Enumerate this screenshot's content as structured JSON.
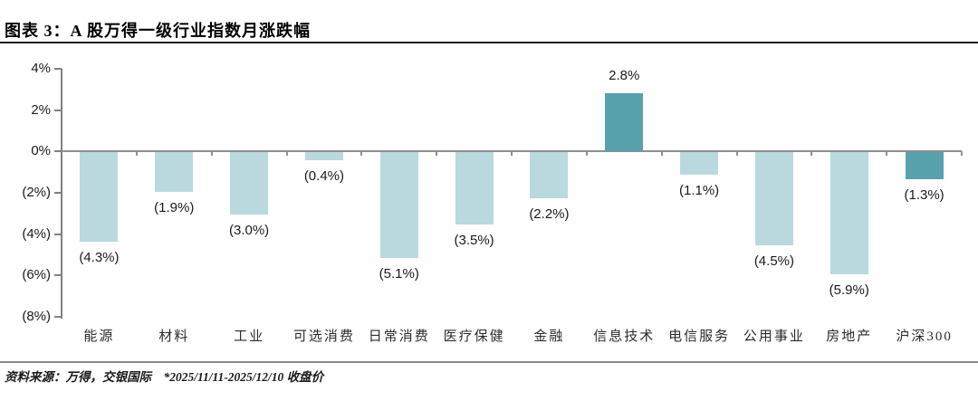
{
  "header": {
    "title": "图表 3：A 股万得一级行业指数月涨跌幅"
  },
  "footer": {
    "source": "资料来源：万得，交银国际    *2025/11/11-2025/12/10 收盘价"
  },
  "chart_data": {
    "type": "bar",
    "title": "A 股万得一级行业指数月涨跌幅",
    "categories": [
      "能源",
      "材料",
      "工业",
      "可选消费",
      "日常消费",
      "医疗保健",
      "金融",
      "信息技术",
      "电信服务",
      "公用事业",
      "房地产",
      "沪深300"
    ],
    "values": [
      -4.3,
      -1.9,
      -3.0,
      -0.4,
      -5.1,
      -3.5,
      -2.2,
      2.8,
      -1.1,
      -4.5,
      -5.9,
      -1.3
    ],
    "value_labels": [
      "(4.3%)",
      "(1.9%)",
      "(3.0%)",
      "(0.4%)",
      "(5.1%)",
      "(3.5%)",
      "(2.2%)",
      "2.8%",
      "(1.1%)",
      "(4.5%)",
      "(5.9%)",
      "(1.3%)"
    ],
    "ytick_values": [
      4,
      2,
      0,
      -2,
      -4,
      -6,
      -8
    ],
    "ytick_labels": [
      "4%",
      "2%",
      "0%",
      "(2%)",
      "(4%)",
      "(6%)",
      "(8%)"
    ],
    "ylim": [
      -8,
      4
    ],
    "xlabel": "",
    "ylabel": "",
    "grid": false,
    "legend_position": "none",
    "bar_color_default": "#b9d9de",
    "bar_color_highlight": "#58a2ae",
    "highlight_indices": [
      7,
      11
    ],
    "axis_color": "#808080"
  }
}
